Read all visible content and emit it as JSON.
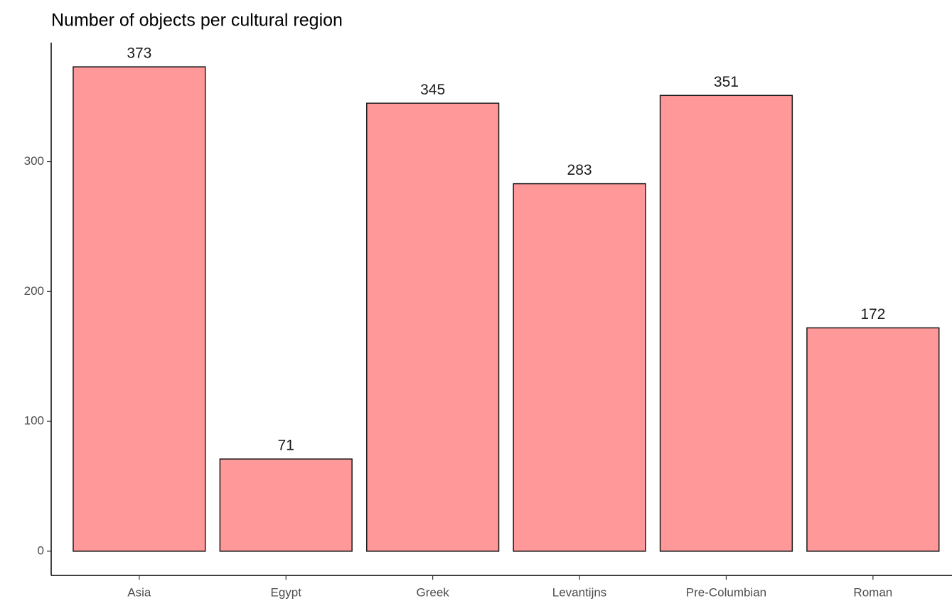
{
  "chart_data": {
    "type": "bar",
    "title": "Number of objects per cultural region",
    "categories": [
      "Asia",
      "Egypt",
      "Greek",
      "Levantijns",
      "Pre-Columbian",
      "Roman"
    ],
    "values": [
      373,
      71,
      345,
      283,
      351,
      172
    ],
    "color": "#ff9999",
    "ylim": [
      -18.65,
      391.65
    ],
    "yticks": [
      0,
      100,
      200,
      300
    ],
    "grid": false
  }
}
